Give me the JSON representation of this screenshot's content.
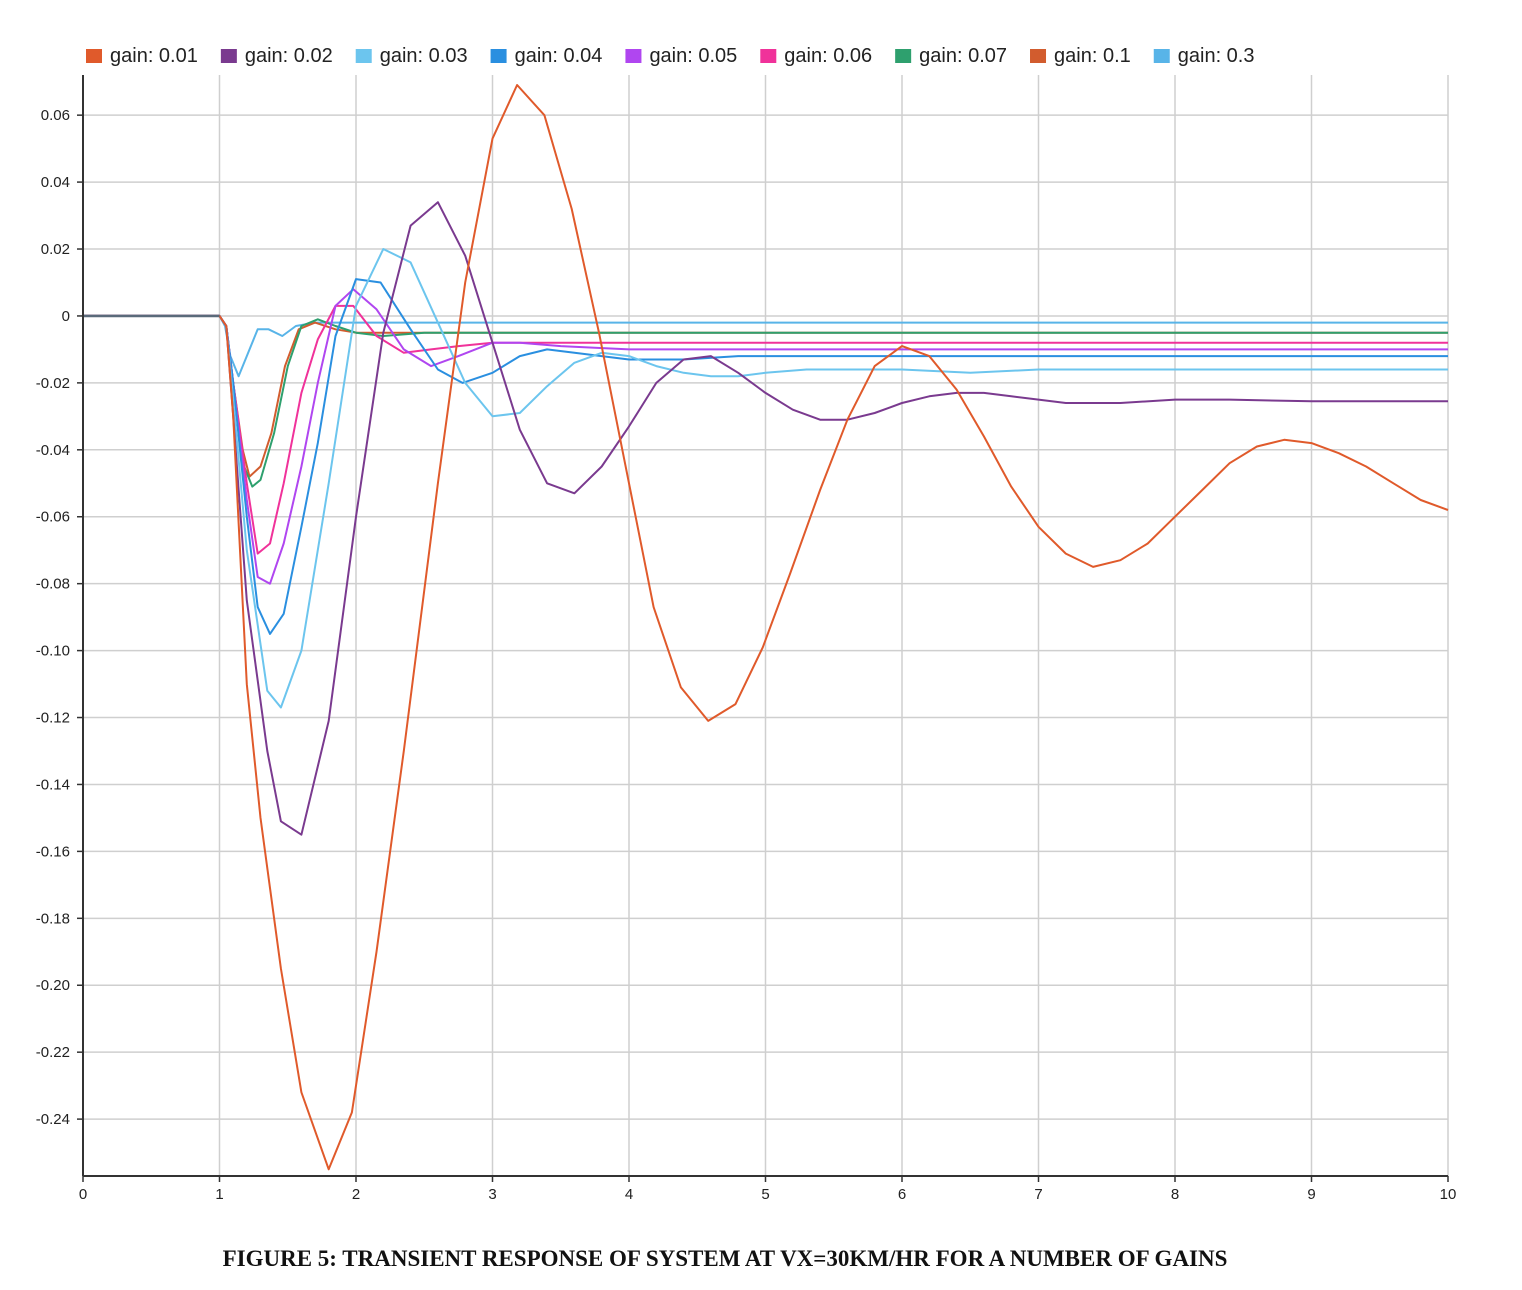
{
  "chart_data": {
    "type": "line",
    "title": "",
    "xlabel": "",
    "ylabel": "",
    "xlim": [
      0,
      10
    ],
    "ylim": [
      -0.257,
      0.072
    ],
    "x_ticks": [
      "0",
      "1",
      "2",
      "3",
      "4",
      "5",
      "6",
      "7",
      "8",
      "9",
      "10"
    ],
    "y_ticks": [
      {
        "value": 0.06,
        "label": "0.06"
      },
      {
        "value": 0.04,
        "label": "0.04"
      },
      {
        "value": 0.02,
        "label": "0.02"
      },
      {
        "value": 0,
        "label": "0"
      },
      {
        "value": -0.02,
        "label": "-0.02"
      },
      {
        "value": -0.04,
        "label": "-0.04"
      },
      {
        "value": -0.06,
        "label": "-0.06"
      },
      {
        "value": -0.08,
        "label": "-0.08"
      },
      {
        "value": -0.1,
        "label": "-0.10"
      },
      {
        "value": -0.12,
        "label": "-0.12"
      },
      {
        "value": -0.14,
        "label": "-0.14"
      },
      {
        "value": -0.16,
        "label": "-0.16"
      },
      {
        "value": -0.18,
        "label": "-0.18"
      },
      {
        "value": -0.2,
        "label": "-0.20"
      },
      {
        "value": -0.22,
        "label": "-0.22"
      },
      {
        "value": -0.24,
        "label": "-0.24"
      }
    ],
    "grid": true,
    "legend_position": "top",
    "series": [
      {
        "name": "gain: 0.01",
        "color": "#E05A2B",
        "points": [
          [
            0,
            0
          ],
          [
            1,
            0
          ],
          [
            1.05,
            -0.003
          ],
          [
            1.1,
            -0.03
          ],
          [
            1.2,
            -0.11
          ],
          [
            1.3,
            -0.15
          ],
          [
            1.45,
            -0.195
          ],
          [
            1.6,
            -0.232
          ],
          [
            1.8,
            -0.255
          ],
          [
            1.97,
            -0.238
          ],
          [
            2.15,
            -0.19
          ],
          [
            2.35,
            -0.13
          ],
          [
            2.6,
            -0.05
          ],
          [
            2.8,
            0.01
          ],
          [
            3,
            0.053
          ],
          [
            3.18,
            0.069
          ],
          [
            3.38,
            0.06
          ],
          [
            3.58,
            0.032
          ],
          [
            3.78,
            -0.005
          ],
          [
            4,
            -0.05
          ],
          [
            4.18,
            -0.087
          ],
          [
            4.38,
            -0.111
          ],
          [
            4.58,
            -0.121
          ],
          [
            4.78,
            -0.116
          ],
          [
            4.98,
            -0.099
          ],
          [
            5.18,
            -0.077
          ],
          [
            5.4,
            -0.052
          ],
          [
            5.6,
            -0.031
          ],
          [
            5.8,
            -0.015
          ],
          [
            6,
            -0.009
          ],
          [
            6.2,
            -0.012
          ],
          [
            6.4,
            -0.022
          ],
          [
            6.6,
            -0.036
          ],
          [
            6.8,
            -0.051
          ],
          [
            7,
            -0.063
          ],
          [
            7.2,
            -0.071
          ],
          [
            7.4,
            -0.075
          ],
          [
            7.6,
            -0.073
          ],
          [
            7.8,
            -0.068
          ],
          [
            8,
            -0.06
          ],
          [
            8.2,
            -0.052
          ],
          [
            8.4,
            -0.044
          ],
          [
            8.6,
            -0.039
          ],
          [
            8.8,
            -0.037
          ],
          [
            9,
            -0.038
          ],
          [
            9.2,
            -0.041
          ],
          [
            9.4,
            -0.045
          ],
          [
            9.6,
            -0.05
          ],
          [
            9.8,
            -0.055
          ],
          [
            10,
            -0.058
          ]
        ]
      },
      {
        "name": "gain: 0.02",
        "color": "#7A3A8F",
        "points": [
          [
            0,
            0
          ],
          [
            1,
            0
          ],
          [
            1.05,
            -0.003
          ],
          [
            1.1,
            -0.03
          ],
          [
            1.2,
            -0.085
          ],
          [
            1.35,
            -0.13
          ],
          [
            1.45,
            -0.151
          ],
          [
            1.6,
            -0.155
          ],
          [
            1.8,
            -0.121
          ],
          [
            2,
            -0.06
          ],
          [
            2.2,
            -0.005
          ],
          [
            2.4,
            0.027
          ],
          [
            2.6,
            0.034
          ],
          [
            2.8,
            0.018
          ],
          [
            3,
            -0.008
          ],
          [
            3.2,
            -0.034
          ],
          [
            3.4,
            -0.05
          ],
          [
            3.6,
            -0.053
          ],
          [
            3.8,
            -0.045
          ],
          [
            4,
            -0.033
          ],
          [
            4.2,
            -0.02
          ],
          [
            4.4,
            -0.013
          ],
          [
            4.6,
            -0.012
          ],
          [
            4.8,
            -0.017
          ],
          [
            5,
            -0.023
          ],
          [
            5.2,
            -0.028
          ],
          [
            5.4,
            -0.031
          ],
          [
            5.6,
            -0.031
          ],
          [
            5.8,
            -0.029
          ],
          [
            6,
            -0.026
          ],
          [
            6.2,
            -0.024
          ],
          [
            6.4,
            -0.023
          ],
          [
            6.6,
            -0.023
          ],
          [
            6.8,
            -0.024
          ],
          [
            7,
            -0.025
          ],
          [
            7.2,
            -0.026
          ],
          [
            7.4,
            -0.026
          ],
          [
            7.6,
            -0.026
          ],
          [
            8,
            -0.025
          ],
          [
            8.4,
            -0.025
          ],
          [
            9,
            -0.0255
          ],
          [
            10,
            -0.0255
          ]
        ]
      },
      {
        "name": "gain: 0.03",
        "color": "#6CC5EE",
        "points": [
          [
            0,
            0
          ],
          [
            1,
            0
          ],
          [
            1.05,
            -0.003
          ],
          [
            1.1,
            -0.025
          ],
          [
            1.2,
            -0.07
          ],
          [
            1.35,
            -0.112
          ],
          [
            1.45,
            -0.117
          ],
          [
            1.6,
            -0.1
          ],
          [
            1.8,
            -0.05
          ],
          [
            2,
            0.003
          ],
          [
            2.2,
            0.02
          ],
          [
            2.4,
            0.016
          ],
          [
            2.6,
            -0.002
          ],
          [
            2.8,
            -0.02
          ],
          [
            3,
            -0.03
          ],
          [
            3.2,
            -0.029
          ],
          [
            3.4,
            -0.021
          ],
          [
            3.6,
            -0.014
          ],
          [
            3.8,
            -0.011
          ],
          [
            4,
            -0.012
          ],
          [
            4.2,
            -0.015
          ],
          [
            4.4,
            -0.017
          ],
          [
            4.6,
            -0.018
          ],
          [
            4.8,
            -0.018
          ],
          [
            5,
            -0.017
          ],
          [
            5.3,
            -0.016
          ],
          [
            5.6,
            -0.016
          ],
          [
            6,
            -0.016
          ],
          [
            6.5,
            -0.017
          ],
          [
            7,
            -0.016
          ],
          [
            8,
            -0.016
          ],
          [
            9,
            -0.016
          ],
          [
            10,
            -0.016
          ]
        ]
      },
      {
        "name": "gain: 0.04",
        "color": "#2A8FE0",
        "points": [
          [
            0,
            0
          ],
          [
            1,
            0
          ],
          [
            1.05,
            -0.003
          ],
          [
            1.1,
            -0.02
          ],
          [
            1.2,
            -0.06
          ],
          [
            1.28,
            -0.087
          ],
          [
            1.37,
            -0.095
          ],
          [
            1.47,
            -0.089
          ],
          [
            1.6,
            -0.063
          ],
          [
            1.72,
            -0.038
          ],
          [
            1.85,
            -0.006
          ],
          [
            2,
            0.011
          ],
          [
            2.18,
            0.01
          ],
          [
            2.4,
            -0.004
          ],
          [
            2.6,
            -0.016
          ],
          [
            2.78,
            -0.02
          ],
          [
            3,
            -0.017
          ],
          [
            3.2,
            -0.012
          ],
          [
            3.4,
            -0.01
          ],
          [
            3.6,
            -0.011
          ],
          [
            3.8,
            -0.012
          ],
          [
            4,
            -0.013
          ],
          [
            4.4,
            -0.013
          ],
          [
            4.8,
            -0.012
          ],
          [
            5.2,
            -0.012
          ],
          [
            6,
            -0.012
          ],
          [
            7,
            -0.012
          ],
          [
            8,
            -0.012
          ],
          [
            10,
            -0.012
          ]
        ]
      },
      {
        "name": "gain: 0.05",
        "color": "#B046F0",
        "points": [
          [
            0,
            0
          ],
          [
            1,
            0
          ],
          [
            1.05,
            -0.003
          ],
          [
            1.1,
            -0.02
          ],
          [
            1.2,
            -0.055
          ],
          [
            1.28,
            -0.078
          ],
          [
            1.37,
            -0.08
          ],
          [
            1.47,
            -0.068
          ],
          [
            1.6,
            -0.045
          ],
          [
            1.72,
            -0.02
          ],
          [
            1.85,
            0.003
          ],
          [
            1.98,
            0.008
          ],
          [
            2.15,
            0.002
          ],
          [
            2.35,
            -0.01
          ],
          [
            2.55,
            -0.015
          ],
          [
            2.75,
            -0.012
          ],
          [
            3,
            -0.008
          ],
          [
            3.2,
            -0.008
          ],
          [
            3.5,
            -0.009
          ],
          [
            4,
            -0.01
          ],
          [
            4.5,
            -0.01
          ],
          [
            5,
            -0.01
          ],
          [
            6,
            -0.01
          ],
          [
            7,
            -0.01
          ],
          [
            8,
            -0.01
          ],
          [
            10,
            -0.01
          ]
        ]
      },
      {
        "name": "gain: 0.06",
        "color": "#F0329A",
        "points": [
          [
            0,
            0
          ],
          [
            1,
            0
          ],
          [
            1.05,
            -0.003
          ],
          [
            1.1,
            -0.02
          ],
          [
            1.2,
            -0.05
          ],
          [
            1.28,
            -0.071
          ],
          [
            1.37,
            -0.068
          ],
          [
            1.47,
            -0.05
          ],
          [
            1.6,
            -0.023
          ],
          [
            1.72,
            -0.007
          ],
          [
            1.85,
            0.003
          ],
          [
            1.98,
            0.003
          ],
          [
            2.15,
            -0.006
          ],
          [
            2.35,
            -0.011
          ],
          [
            2.55,
            -0.01
          ],
          [
            2.75,
            -0.009
          ],
          [
            3,
            -0.008
          ],
          [
            3.4,
            -0.008
          ],
          [
            4,
            -0.008
          ],
          [
            5,
            -0.008
          ],
          [
            6,
            -0.008
          ],
          [
            7,
            -0.008
          ],
          [
            8,
            -0.008
          ],
          [
            10,
            -0.008
          ]
        ]
      },
      {
        "name": "gain: 0.07",
        "color": "#2EA06E",
        "points": [
          [
            0,
            0
          ],
          [
            1,
            0
          ],
          [
            1.05,
            -0.003
          ],
          [
            1.1,
            -0.02
          ],
          [
            1.18,
            -0.045
          ],
          [
            1.24,
            -0.051
          ],
          [
            1.3,
            -0.049
          ],
          [
            1.4,
            -0.035
          ],
          [
            1.5,
            -0.015
          ],
          [
            1.6,
            -0.003
          ],
          [
            1.72,
            -0.001
          ],
          [
            1.85,
            -0.003
          ],
          [
            2,
            -0.005
          ],
          [
            2.2,
            -0.006
          ],
          [
            2.5,
            -0.005
          ],
          [
            3,
            -0.005
          ],
          [
            4,
            -0.005
          ],
          [
            5,
            -0.005
          ],
          [
            6,
            -0.005
          ],
          [
            7,
            -0.005
          ],
          [
            8,
            -0.005
          ],
          [
            10,
            -0.005
          ]
        ]
      },
      {
        "name": "gain: 0.1",
        "color": "#D25C2E",
        "points": [
          [
            0,
            0
          ],
          [
            1,
            0
          ],
          [
            1.05,
            -0.003
          ],
          [
            1.1,
            -0.02
          ],
          [
            1.17,
            -0.04
          ],
          [
            1.22,
            -0.048
          ],
          [
            1.3,
            -0.045
          ],
          [
            1.38,
            -0.035
          ],
          [
            1.48,
            -0.015
          ],
          [
            1.58,
            -0.004
          ],
          [
            1.7,
            -0.002
          ],
          [
            1.85,
            -0.004
          ],
          [
            2,
            -0.005
          ],
          [
            2.3,
            -0.005
          ],
          [
            3,
            -0.005
          ],
          [
            4,
            -0.005
          ],
          [
            5,
            -0.005
          ],
          [
            6,
            -0.005
          ],
          [
            7,
            -0.005
          ],
          [
            8,
            -0.005
          ],
          [
            10,
            -0.005
          ]
        ]
      },
      {
        "name": "gain: 0.3",
        "color": "#58B4E8",
        "points": [
          [
            0,
            0
          ],
          [
            1,
            0
          ],
          [
            1.04,
            -0.003
          ],
          [
            1.08,
            -0.012
          ],
          [
            1.14,
            -0.018
          ],
          [
            1.2,
            -0.012
          ],
          [
            1.28,
            -0.004
          ],
          [
            1.36,
            -0.004
          ],
          [
            1.46,
            -0.006
          ],
          [
            1.56,
            -0.003
          ],
          [
            1.7,
            -0.002
          ],
          [
            2,
            -0.002
          ],
          [
            3,
            -0.002
          ],
          [
            4,
            -0.002
          ],
          [
            5,
            -0.002
          ],
          [
            6,
            -0.002
          ],
          [
            7,
            -0.002
          ],
          [
            8,
            -0.002
          ],
          [
            10,
            -0.002
          ]
        ]
      }
    ]
  },
  "caption": "FIGURE 5: TRANSIENT RESPONSE OF SYSTEM AT VX=30KM/HR FOR A NUMBER OF GAINS"
}
